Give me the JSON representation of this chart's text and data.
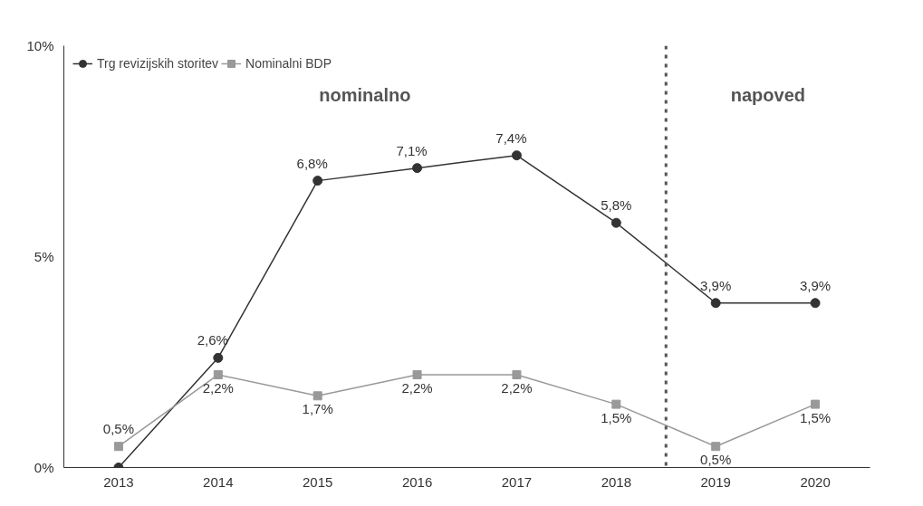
{
  "chart_data": {
    "type": "line",
    "x": [
      2013,
      2014,
      2015,
      2016,
      2017,
      2018,
      2019,
      2020
    ],
    "series": [
      {
        "name": "Trg revizijskih storitev",
        "color": "#333333",
        "marker": "circle",
        "values": [
          0,
          2.6,
          6.8,
          7.1,
          7.4,
          5.8,
          3.9,
          3.9
        ],
        "value_labels": [
          null,
          "2,6%",
          "6,8%",
          "7,1%",
          "7,4%",
          "5,8%",
          "3,9%",
          "3,9%"
        ]
      },
      {
        "name": "Nominalni BDP",
        "color": "#999999",
        "marker": "square",
        "values": [
          0.5,
          2.2,
          1.7,
          2.2,
          2.2,
          1.5,
          0.5,
          1.5
        ],
        "value_labels": [
          "0,5%",
          "2,2%",
          "1,7%",
          "2,2%",
          "2,2%",
          "1,5%",
          "0,5%",
          "1,5%"
        ]
      }
    ],
    "xlim": [
      2012.45,
      2020.55
    ],
    "xticks": [
      2013,
      2014,
      2015,
      2016,
      2017,
      2018,
      2019,
      2020
    ],
    "ylim": [
      0,
      10
    ],
    "yticks": [
      {
        "value": 0,
        "label": "0%"
      },
      {
        "value": 5,
        "label": "5%"
      },
      {
        "value": 10,
        "label": "10%"
      }
    ],
    "ref_lines": [
      {
        "axis": "x",
        "value": 2018.5,
        "label": null,
        "color": "#555555",
        "line_style": "dotted"
      }
    ],
    "annotations": [
      "nominalno",
      "napoved"
    ],
    "legend": "top left",
    "grid": false,
    "line_style": "solid"
  }
}
